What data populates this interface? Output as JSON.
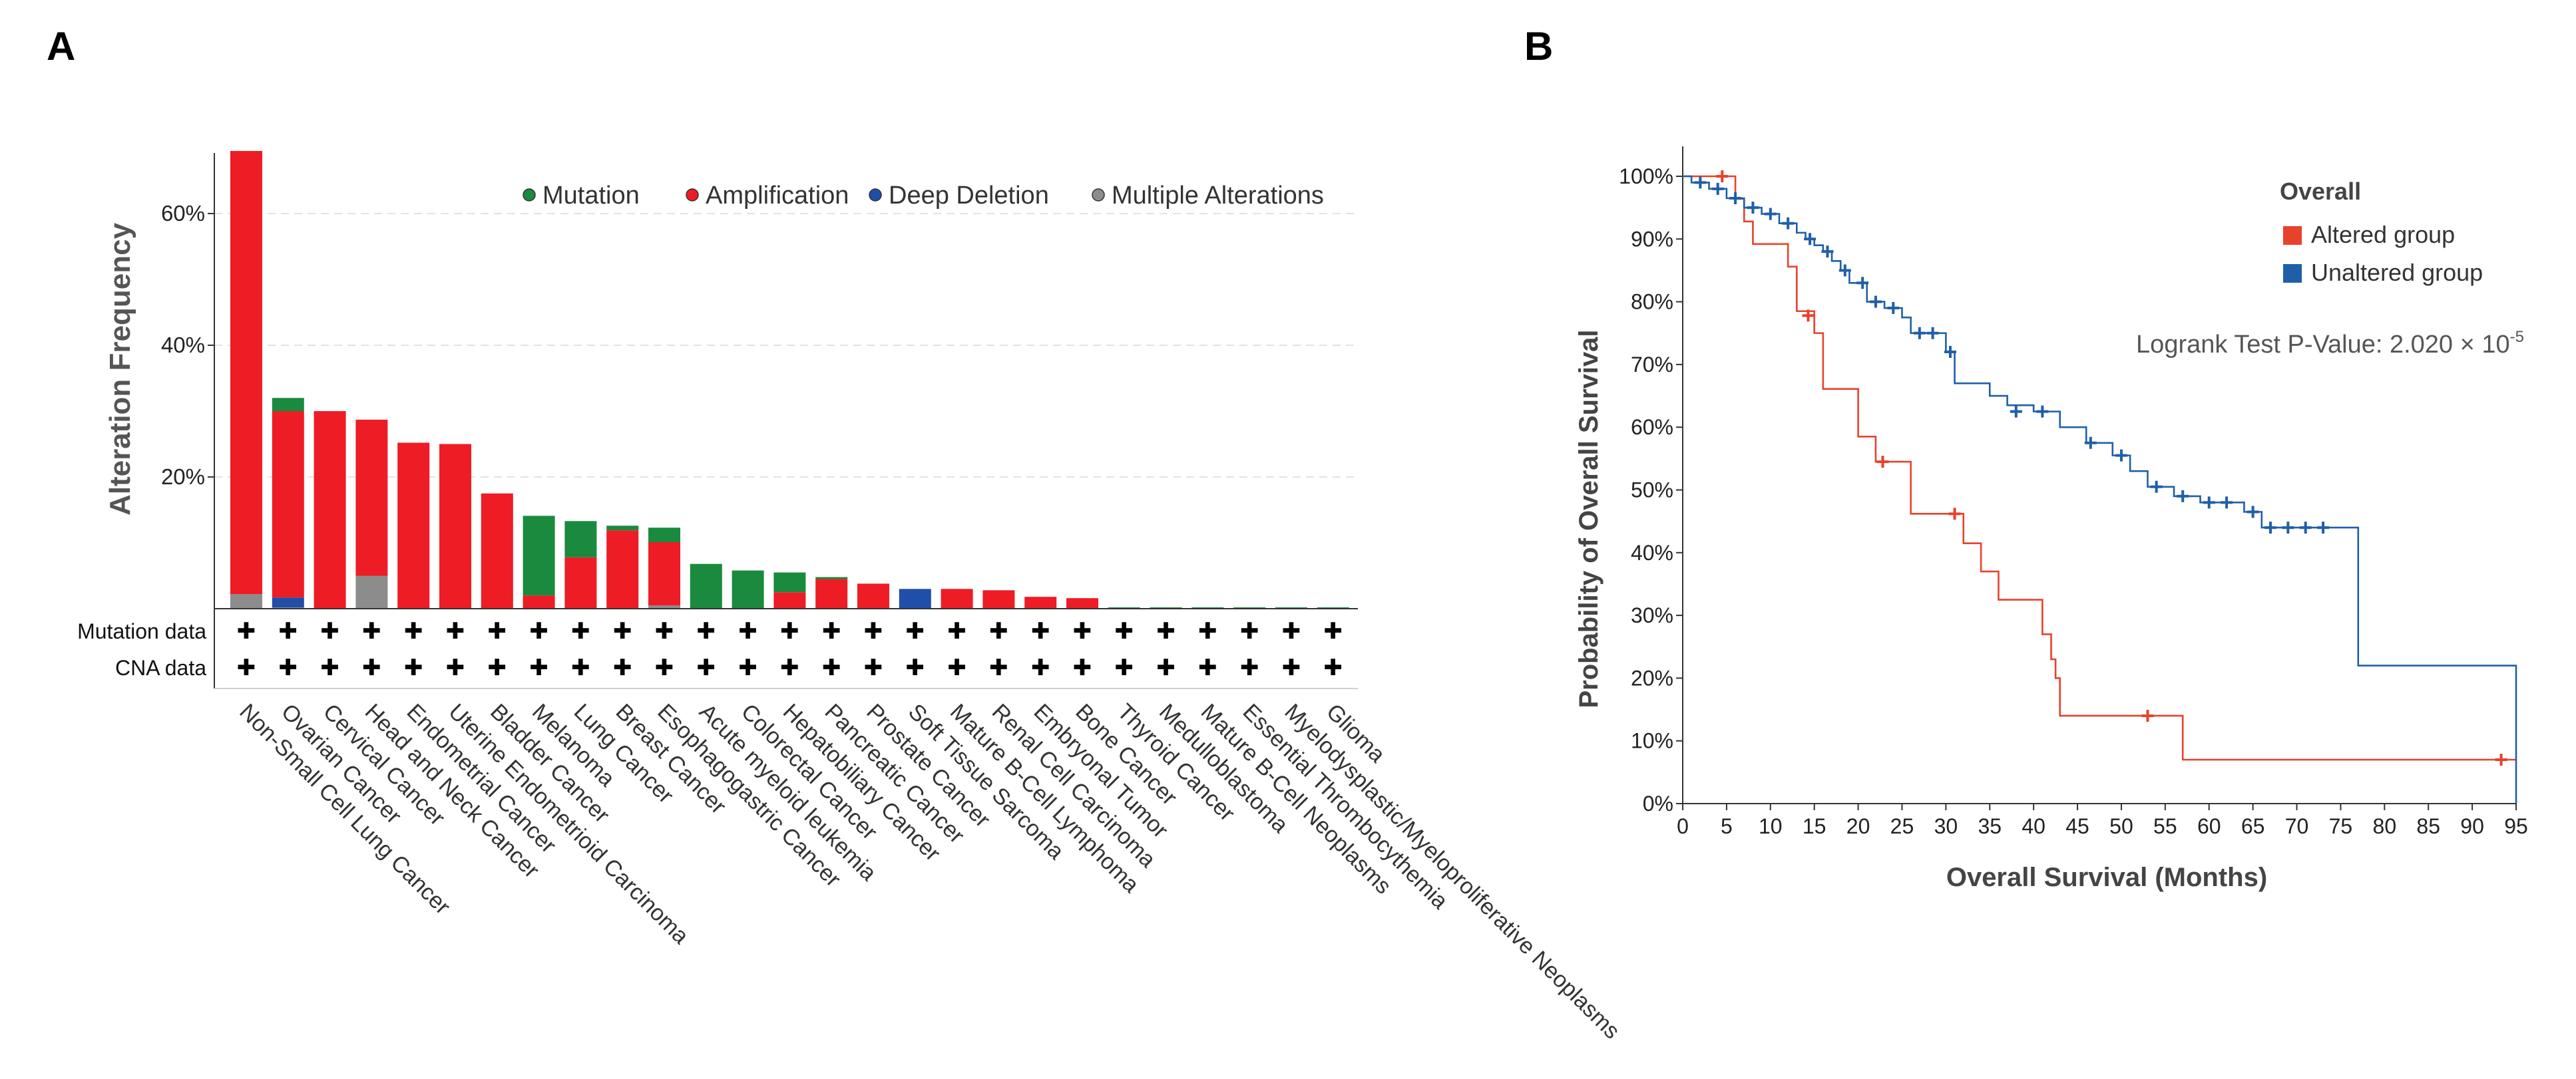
{
  "panel_a": {
    "label": "A",
    "chart_data": {
      "type": "bar",
      "stacked": true,
      "ylabel": "Alteration Frequency",
      "ylim": [
        0,
        0.7
      ],
      "yticks": [
        {
          "value": 0.2,
          "label": "20%"
        },
        {
          "value": 0.4,
          "label": "40%"
        },
        {
          "value": 0.6,
          "label": "60%"
        }
      ],
      "legend": [
        {
          "name": "Mutation",
          "color": "#1a8a3e"
        },
        {
          "name": "Amplification",
          "color": "#ee1c25"
        },
        {
          "name": "Deep Deletion",
          "color": "#1f4fa8"
        },
        {
          "name": "Multiple Alterations",
          "color": "#8c8c8c"
        }
      ],
      "stack_order": [
        "Multiple Alterations",
        "Deep Deletion",
        "Amplification",
        "Mutation"
      ],
      "categories": [
        "Non-Small Cell Lung Cancer",
        "Ovarian Cancer",
        "Cervical Cancer",
        "Head and Neck Cancer",
        "Endometrial Cancer",
        "Uterine Endometrioid Carcinoma",
        "Bladder Cancer",
        "Melanoma",
        "Lung Cancer",
        "Breast Cancer",
        "Esophagogastric Cancer",
        "Acute myeloid leukemia",
        "Colorectal Cancer",
        "Hepatobiliary Cancer",
        "Pancreatic Cancer",
        "Prostate Cancer",
        "Soft Tissue Sarcoma",
        "Mature B-Cell Lymphoma",
        "Renal Cell Carcinoma",
        "Embryonal Tumor",
        "Bone Cancer",
        "Thyroid Cancer",
        "Medulloblastoma",
        "Mature B-Cell Neoplasms",
        "Essential Thrombocythemia",
        "Myelodysplastic/Myeloproliferative Neoplasms",
        "Glioma"
      ],
      "series": [
        {
          "name": "Multiple Alterations",
          "values": [
            0.022,
            0.002,
            0,
            0.05,
            0,
            0,
            0,
            0,
            0,
            0,
            0.005,
            0,
            0,
            0,
            0,
            0,
            0,
            0,
            0,
            0,
            0,
            0,
            0,
            0,
            0,
            0,
            0
          ]
        },
        {
          "name": "Deep Deletion",
          "values": [
            0,
            0.015,
            0,
            0,
            0,
            0,
            0,
            0,
            0,
            0,
            0,
            0,
            0,
            0,
            0,
            0,
            0.03,
            0,
            0,
            0,
            0,
            0,
            0,
            0,
            0,
            0,
            0
          ]
        },
        {
          "name": "Amplification",
          "values": [
            0.673,
            0.283,
            0.3,
            0.237,
            0.252,
            0.25,
            0.175,
            0.02,
            0.078,
            0.119,
            0.096,
            0,
            0,
            0.025,
            0.045,
            0.038,
            0,
            0.03,
            0.028,
            0.018,
            0.016,
            0,
            0,
            0,
            0,
            0,
            0
          ]
        },
        {
          "name": "Mutation",
          "values": [
            0,
            0.02,
            0,
            0,
            0,
            0,
            0,
            0.121,
            0.055,
            0.007,
            0.022,
            0.068,
            0.058,
            0.03,
            0.003,
            0,
            0,
            0,
            0,
            0,
            0,
            0.002,
            0.002,
            0.002,
            0.002,
            0.002,
            0.002
          ]
        }
      ],
      "data_rows": [
        {
          "label": "Mutation data",
          "marker": "✚"
        },
        {
          "label": "CNA data",
          "marker": "✚"
        }
      ]
    }
  },
  "panel_b": {
    "label": "B",
    "chart_data": {
      "type": "line",
      "subtype": "kaplan-meier",
      "xlabel": "Overall Survival (Months)",
      "ylabel": "Probability of Overall Survival",
      "xlim": [
        0,
        95
      ],
      "ylim": [
        0,
        1
      ],
      "xticks": [
        0,
        5,
        10,
        15,
        20,
        25,
        30,
        35,
        40,
        45,
        50,
        55,
        60,
        65,
        70,
        75,
        80,
        85,
        90,
        95
      ],
      "yticks": [
        {
          "value": 0,
          "label": "0%"
        },
        {
          "value": 0.1,
          "label": "10%"
        },
        {
          "value": 0.2,
          "label": "20%"
        },
        {
          "value": 0.3,
          "label": "30%"
        },
        {
          "value": 0.4,
          "label": "40%"
        },
        {
          "value": 0.5,
          "label": "50%"
        },
        {
          "value": 0.6,
          "label": "60%"
        },
        {
          "value": 0.7,
          "label": "70%"
        },
        {
          "value": 0.8,
          "label": "80%"
        },
        {
          "value": 0.9,
          "label": "90%"
        },
        {
          "value": 1.0,
          "label": "100%"
        }
      ],
      "legend_title": "Overall",
      "annotation": {
        "text": "Logrank Test P-Value: 2.020 × 10",
        "superscript": "-5"
      },
      "series": [
        {
          "name": "Altered group",
          "color": "#e8412c",
          "steps": [
            [
              0,
              1.0
            ],
            [
              6,
              0.964
            ],
            [
              7,
              0.928
            ],
            [
              8,
              0.892
            ],
            [
              12,
              0.856
            ],
            [
              13,
              0.785
            ],
            [
              15,
              0.75
            ],
            [
              16,
              0.661
            ],
            [
              20,
              0.585
            ],
            [
              22,
              0.545
            ],
            [
              26,
              0.462
            ],
            [
              32,
              0.415
            ],
            [
              34,
              0.37
            ],
            [
              36,
              0.325
            ],
            [
              41,
              0.27
            ],
            [
              42,
              0.23
            ],
            [
              42.5,
              0.2
            ],
            [
              43,
              0.14
            ],
            [
              57,
              0.07
            ],
            [
              95,
              0.07
            ]
          ],
          "end_x": 95,
          "censors": [
            [
              4.5,
              1.0
            ],
            [
              14.3,
              0.778
            ],
            [
              22.8,
              0.545
            ],
            [
              31.0,
              0.462
            ],
            [
              53.0,
              0.14
            ],
            [
              93.3,
              0.07
            ]
          ]
        },
        {
          "name": "Unaltered group",
          "color": "#1f5fa8",
          "steps": [
            [
              0,
              1.0
            ],
            [
              1,
              0.99
            ],
            [
              3,
              0.98
            ],
            [
              5,
              0.965
            ],
            [
              7,
              0.95
            ],
            [
              9,
              0.94
            ],
            [
              11,
              0.925
            ],
            [
              13,
              0.91
            ],
            [
              14,
              0.9
            ],
            [
              15,
              0.89
            ],
            [
              16,
              0.88
            ],
            [
              17,
              0.865
            ],
            [
              18,
              0.85
            ],
            [
              19,
              0.83
            ],
            [
              21,
              0.8
            ],
            [
              23,
              0.79
            ],
            [
              25,
              0.775
            ],
            [
              26,
              0.75
            ],
            [
              30,
              0.72
            ],
            [
              31,
              0.67
            ],
            [
              35,
              0.65
            ],
            [
              37,
              0.635
            ],
            [
              40,
              0.625
            ],
            [
              43,
              0.6
            ],
            [
              46,
              0.575
            ],
            [
              49,
              0.555
            ],
            [
              51,
              0.53
            ],
            [
              53,
              0.505
            ],
            [
              56,
              0.49
            ],
            [
              59,
              0.48
            ],
            [
              64,
              0.465
            ],
            [
              66,
              0.44
            ],
            [
              76,
              0.44
            ],
            [
              77,
              0.22
            ],
            [
              95,
              0.22
            ],
            [
              95,
              0.0
            ]
          ],
          "censors": [
            [
              2,
              0.99
            ],
            [
              4,
              0.98
            ],
            [
              6,
              0.965
            ],
            [
              8,
              0.95
            ],
            [
              10,
              0.94
            ],
            [
              12,
              0.925
            ],
            [
              14.5,
              0.9
            ],
            [
              16.5,
              0.88
            ],
            [
              18.5,
              0.85
            ],
            [
              20.5,
              0.83
            ],
            [
              22,
              0.8
            ],
            [
              24,
              0.79
            ],
            [
              27,
              0.75
            ],
            [
              28.5,
              0.75
            ],
            [
              30.5,
              0.72
            ],
            [
              38,
              0.625
            ],
            [
              41,
              0.625
            ],
            [
              46.5,
              0.575
            ],
            [
              50,
              0.555
            ],
            [
              54,
              0.505
            ],
            [
              57,
              0.49
            ],
            [
              60,
              0.48
            ],
            [
              62,
              0.48
            ],
            [
              65,
              0.465
            ],
            [
              67,
              0.44
            ],
            [
              69,
              0.44
            ],
            [
              71,
              0.44
            ],
            [
              73,
              0.44
            ]
          ]
        }
      ]
    }
  }
}
